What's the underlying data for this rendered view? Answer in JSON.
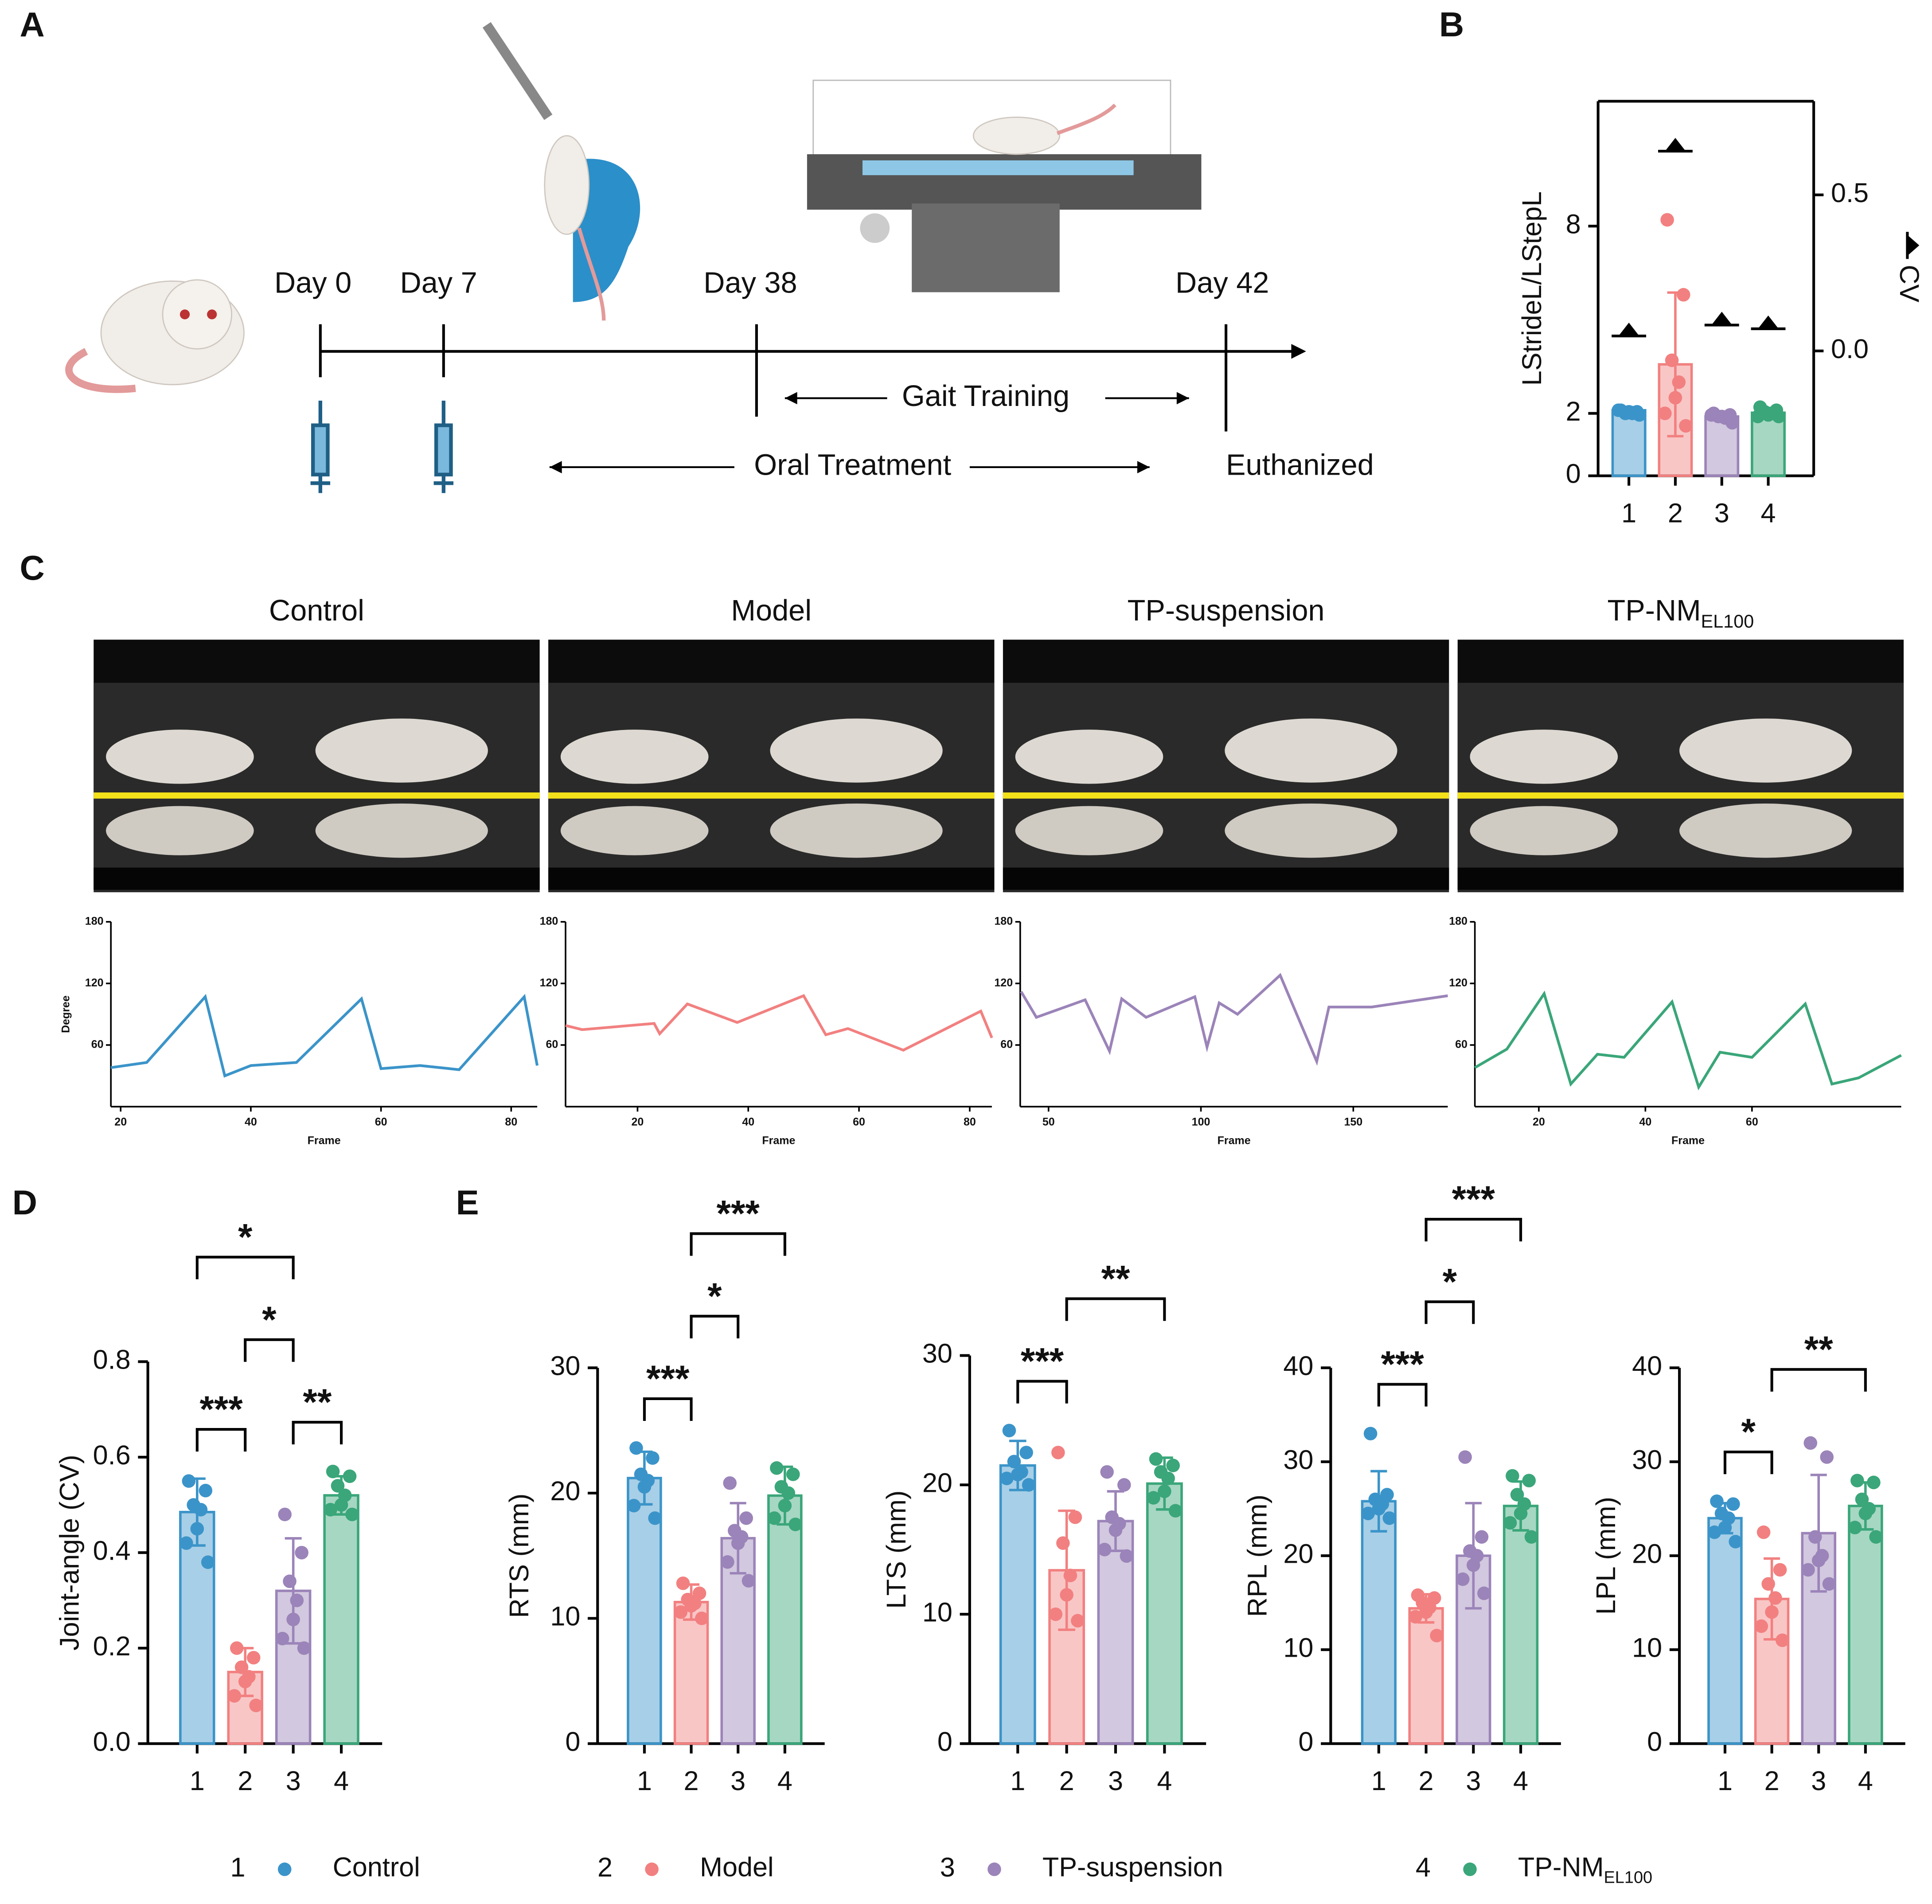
{
  "panels": [
    "A",
    "B",
    "C",
    "D",
    "E"
  ],
  "timeline": {
    "days": [
      "Day 0",
      "Day 7",
      "Day 38",
      "Day 42"
    ],
    "gait": "Gait Training",
    "oral": "Oral Treatment",
    "end": "Euthanized"
  },
  "legend": [
    {
      "number": "1",
      "label": "Control",
      "color": "#3b94c9"
    },
    {
      "number": "2",
      "label": "Model",
      "color": "#f28080"
    },
    {
      "number": "3",
      "label": "TP-suspension",
      "color": "#9b84b9"
    },
    {
      "number": "4",
      "label": "TP-NM",
      "sub": "EL100",
      "color": "#3aa679"
    }
  ],
  "chart_data": [
    {
      "type": "bar",
      "ylabel": "LStrideL/LStepL",
      "y2label": "CV",
      "categories": [
        "1",
        "2",
        "3",
        "4"
      ],
      "values": [
        2.1,
        3.57,
        1.9,
        2.02
      ],
      "errors": [
        0.1,
        2.3,
        0.1,
        0.15
      ],
      "points": [
        [
          2.1,
          2.05,
          2.0,
          2.0,
          2.05,
          2.1,
          1.95
        ],
        [
          8.2,
          5.8,
          3.7,
          3.0,
          2.5,
          2.0,
          1.6
        ],
        [
          2.0,
          1.95,
          1.9,
          1.85,
          1.9,
          1.95,
          1.7
        ],
        [
          2.2,
          2.1,
          2.05,
          2.0,
          1.95,
          1.9,
          1.9
        ]
      ],
      "y2_values": [
        0.048,
        0.64,
        0.083,
        0.071
      ],
      "ylim": [
        0,
        12
      ],
      "yticks": [
        0,
        2,
        8
      ],
      "y2lim": [
        -0.4,
        0.8
      ],
      "y2ticks": [
        {
          "value": 0,
          "label": "0.0"
        },
        0.5
      ]
    },
    {
      "type": "line",
      "title": "Control",
      "ylabel": "Degree",
      "xlabel": "Frame",
      "x": [
        18.5,
        24,
        33,
        36,
        40,
        47,
        57,
        60,
        66,
        72,
        82,
        84
      ],
      "values": [
        38,
        43,
        107,
        30,
        40,
        43,
        105,
        37,
        40,
        36,
        107,
        40
      ],
      "xlim": [
        18.5,
        84
      ],
      "xticks": [
        20,
        40,
        60,
        80
      ],
      "ylim": [
        0,
        180
      ],
      "yticks": [
        60,
        120,
        180
      ]
    },
    {
      "type": "line",
      "title": "Model",
      "xlabel": "Frame",
      "x": [
        7,
        10,
        23,
        24,
        29,
        38,
        50,
        54,
        58,
        68,
        82,
        84
      ],
      "values": [
        79,
        75,
        81,
        71,
        100,
        82,
        108,
        70,
        76,
        55,
        93,
        67
      ],
      "xlim": [
        7,
        84
      ],
      "xticks": [
        20,
        40,
        60,
        80
      ],
      "ylim": [
        0,
        180
      ],
      "yticks": [
        60,
        120,
        180
      ]
    },
    {
      "type": "line",
      "title": "TP-suspension",
      "xlabel": "Frame",
      "x": [
        41,
        46,
        62,
        70,
        74,
        82,
        98,
        102,
        106,
        112,
        126,
        138,
        142,
        156,
        181
      ],
      "values": [
        112,
        87,
        104,
        54,
        105,
        87,
        107,
        58,
        101,
        90,
        128,
        44,
        97,
        97,
        108
      ],
      "xlim": [
        40.7,
        181
      ],
      "xticks": [
        50,
        100,
        150
      ],
      "ylim": [
        0,
        180
      ],
      "yticks": [
        60,
        120,
        180
      ]
    },
    {
      "type": "line",
      "title": "TP-NM",
      "title_sub": "EL100",
      "xlabel": "Frame",
      "x": [
        8,
        14,
        21,
        26,
        31,
        36,
        45,
        50,
        54,
        60,
        70,
        75,
        80,
        88
      ],
      "values": [
        38,
        56,
        110,
        22,
        51,
        48,
        102,
        19,
        53,
        48,
        100,
        22,
        28,
        50
      ],
      "xlim": [
        8,
        88
      ],
      "xticks": [
        20,
        40,
        60
      ],
      "ylim": [
        0,
        180
      ],
      "yticks": [
        60,
        120,
        180
      ]
    },
    {
      "type": "bar",
      "ylabel": "Joint-angle (CV)",
      "categories": [
        "1",
        "2",
        "3",
        "4"
      ],
      "values": [
        0.485,
        0.15,
        0.32,
        0.52
      ],
      "errors": [
        0.07,
        0.05,
        0.11,
        0.04
      ],
      "points": [
        [
          0.55,
          0.53,
          0.5,
          0.49,
          0.45,
          0.42,
          0.38
        ],
        [
          0.2,
          0.18,
          0.16,
          0.14,
          0.13,
          0.1,
          0.08
        ],
        [
          0.48,
          0.4,
          0.34,
          0.3,
          0.26,
          0.22,
          0.2
        ],
        [
          0.57,
          0.56,
          0.54,
          0.52,
          0.5,
          0.49,
          0.48
        ]
      ],
      "ylim": [
        0,
        0.8
      ],
      "yticks": [
        {
          "value": 0,
          "label": "0.0"
        },
        0.2,
        0.4,
        0.6,
        0.8
      ],
      "significance": [
        {
          "groups": [
            "1",
            "2"
          ],
          "label": "***"
        },
        {
          "groups": [
            "3",
            "4"
          ],
          "label": "**"
        },
        {
          "groups": [
            "2",
            "3"
          ],
          "label": "*"
        },
        {
          "groups": [
            "1",
            "3"
          ],
          "label": "*"
        }
      ]
    },
    {
      "type": "bar",
      "ylabel": "RTS (mm)",
      "categories": [
        "1",
        "2",
        "3",
        "4"
      ],
      "values": [
        21.2,
        11.3,
        16.4,
        19.8
      ],
      "errors": [
        2.1,
        1.4,
        2.8,
        2.3
      ],
      "points": [
        [
          23.6,
          22.8,
          21.5,
          21.0,
          20.5,
          19.0,
          18.0
        ],
        [
          12.8,
          12.0,
          11.5,
          11.2,
          11.0,
          10.5,
          10.0
        ],
        [
          20.8,
          18.0,
          17.0,
          16.5,
          16.0,
          14.5,
          13.0
        ],
        [
          22.0,
          21.5,
          20.5,
          20.0,
          19.0,
          18.0,
          17.5
        ]
      ],
      "ylim": [
        0,
        30
      ],
      "yticks": [
        0,
        10,
        20,
        30
      ],
      "significance": [
        {
          "groups": [
            "1",
            "2"
          ],
          "label": "***"
        },
        {
          "groups": [
            "2",
            "3"
          ],
          "label": "*"
        },
        {
          "groups": [
            "2",
            "4"
          ],
          "label": "***"
        }
      ]
    },
    {
      "type": "bar",
      "ylabel": "LTS (mm)",
      "categories": [
        "1",
        "2",
        "3",
        "4"
      ],
      "values": [
        21.5,
        13.4,
        17.2,
        20.1
      ],
      "errors": [
        1.9,
        4.6,
        2.3,
        2.0
      ],
      "points": [
        [
          24.2,
          22.5,
          21.8,
          21.0,
          20.8,
          20.5,
          20.0
        ],
        [
          22.5,
          17.5,
          15.5,
          13.0,
          11.5,
          10.0,
          9.5
        ],
        [
          21.0,
          20.0,
          17.5,
          17.0,
          16.5,
          15.0,
          14.5
        ],
        [
          22.0,
          21.5,
          21.0,
          20.5,
          19.5,
          19.0,
          18.0
        ]
      ],
      "ylim": [
        0,
        30
      ],
      "yticks": [
        0,
        10,
        20,
        30
      ],
      "significance": [
        {
          "groups": [
            "1",
            "2"
          ],
          "label": "***"
        },
        {
          "groups": [
            "2",
            "4"
          ],
          "label": "**"
        }
      ]
    },
    {
      "type": "bar",
      "ylabel": "RPL (mm)",
      "categories": [
        "1",
        "2",
        "3",
        "4"
      ],
      "values": [
        25.8,
        14.4,
        20.0,
        25.3
      ],
      "errors": [
        3.2,
        1.5,
        5.6,
        2.6
      ],
      "points": [
        [
          33.0,
          26.5,
          26.0,
          25.5,
          25.0,
          24.5,
          24.0
        ],
        [
          15.8,
          15.5,
          15.0,
          14.5,
          14.0,
          13.5,
          11.5
        ],
        [
          30.5,
          22.0,
          20.5,
          20.0,
          19.0,
          17.5,
          16.0
        ],
        [
          28.5,
          28.0,
          26.5,
          25.5,
          24.5,
          23.5,
          22.0
        ]
      ],
      "ylim": [
        0,
        40
      ],
      "yticks": [
        0,
        10,
        20,
        30,
        40
      ],
      "significance": [
        {
          "groups": [
            "1",
            "2"
          ],
          "label": "***"
        },
        {
          "groups": [
            "2",
            "3"
          ],
          "label": "*"
        },
        {
          "groups": [
            "2",
            "4"
          ],
          "label": "***"
        }
      ]
    },
    {
      "type": "bar",
      "ylabel": "LPL (mm)",
      "categories": [
        "1",
        "2",
        "3",
        "4"
      ],
      "values": [
        24.0,
        15.4,
        22.4,
        25.3
      ],
      "errors": [
        1.6,
        4.3,
        6.2,
        2.5
      ],
      "points": [
        [
          25.8,
          25.5,
          24.5,
          24.0,
          23.0,
          22.5,
          21.5
        ],
        [
          22.5,
          18.5,
          17.0,
          15.5,
          14.0,
          12.5,
          11.0
        ],
        [
          32.0,
          30.5,
          22.0,
          20.0,
          19.5,
          18.5,
          17.0
        ],
        [
          28.0,
          27.8,
          26.0,
          25.0,
          24.5,
          23.0,
          22.0
        ]
      ],
      "ylim": [
        0,
        40
      ],
      "yticks": [
        0,
        10,
        20,
        30,
        40
      ],
      "significance": [
        {
          "groups": [
            "1",
            "2"
          ],
          "label": "*"
        },
        {
          "groups": [
            "2",
            "4"
          ],
          "label": "**"
        }
      ]
    }
  ]
}
